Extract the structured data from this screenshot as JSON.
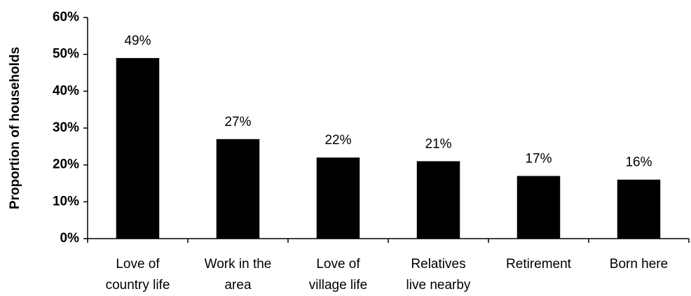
{
  "chart_data": {
    "type": "bar",
    "y_label": "Proportion of households",
    "categories": [
      "Love of\ncountry life",
      "Work in the\narea",
      "Love of\nvillage life",
      "Relatives\nlive nearby",
      "Retirement",
      "Born here"
    ],
    "values": [
      49,
      27,
      22,
      21,
      17,
      16
    ],
    "value_labels": [
      "49%",
      "27%",
      "22%",
      "21%",
      "17%",
      "16%"
    ],
    "color": "#000000",
    "ylim": [
      0,
      60
    ],
    "yticks": [
      {
        "value": 0,
        "label": "0%"
      },
      {
        "value": 10,
        "label": "10%"
      },
      {
        "value": 20,
        "label": "20%"
      },
      {
        "value": 30,
        "label": "30%"
      },
      {
        "value": 40,
        "label": "40%"
      },
      {
        "value": 50,
        "label": "50%"
      },
      {
        "value": 60,
        "label": "60%"
      }
    ],
    "grid": false
  }
}
